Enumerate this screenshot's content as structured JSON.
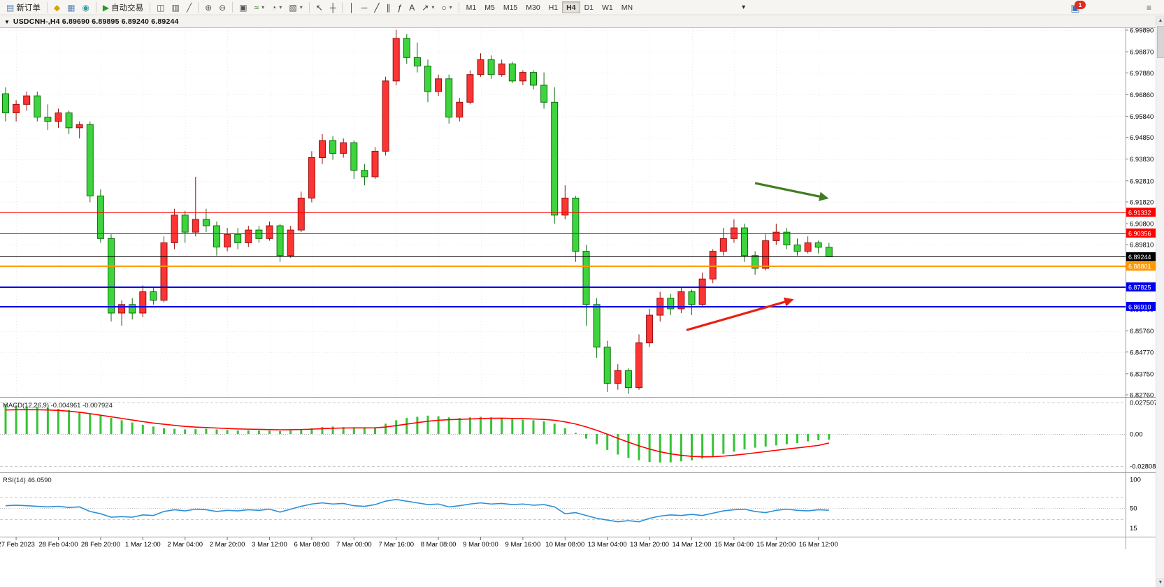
{
  "toolbar": {
    "new_order": {
      "label": "新订单"
    },
    "auto_trading": {
      "label": "自动交易"
    },
    "groups": [
      {
        "items": [
          {
            "name": "new-order",
            "glyph": "▤",
            "color": "#5b86b8",
            "label": "新订单"
          }
        ]
      },
      {
        "items": [
          {
            "name": "market-watch",
            "glyph": "◆",
            "color": "#d8a400"
          },
          {
            "name": "data-window",
            "glyph": "▦",
            "color": "#5b86b8"
          },
          {
            "name": "navigator",
            "glyph": "◉",
            "color": "#2f9e9e"
          }
        ]
      },
      {
        "items": [
          {
            "name": "auto-trading",
            "glyph": "▶",
            "color": "#21a121",
            "label": "自动交易"
          }
        ]
      },
      {
        "items": [
          {
            "name": "bar-chart",
            "glyph": "◫",
            "color": "#555555"
          },
          {
            "name": "candlestick-chart",
            "glyph": "▥",
            "color": "#555555"
          },
          {
            "name": "line-chart",
            "glyph": "╱",
            "color": "#555555"
          }
        ]
      },
      {
        "items": [
          {
            "name": "zoom-in",
            "glyph": "⊕",
            "color": "#555555"
          },
          {
            "name": "zoom-out",
            "glyph": "⊖",
            "color": "#555555"
          }
        ]
      },
      {
        "items": [
          {
            "name": "tile-windows",
            "glyph": "▣",
            "color": "#555555"
          },
          {
            "name": "indicators",
            "glyph": "≈",
            "color": "#2f7d2f",
            "caret": true
          },
          {
            "name": "periods",
            "glyph": "◔",
            "color": "#555555",
            "caret": true
          },
          {
            "name": "templates",
            "glyph": "▧",
            "color": "#555555",
            "caret": true
          }
        ]
      },
      {
        "items": [
          {
            "name": "cursor",
            "glyph": "↖",
            "color": "#333333"
          },
          {
            "name": "crosshair",
            "glyph": "┼",
            "color": "#333333"
          }
        ]
      },
      {
        "items": [
          {
            "name": "vertical-line",
            "glyph": "│",
            "color": "#333333"
          },
          {
            "name": "horizontal-line",
            "glyph": "─",
            "color": "#333333"
          },
          {
            "name": "trendline",
            "glyph": "╱",
            "color": "#333333"
          },
          {
            "name": "equidistant-channel",
            "glyph": "∥",
            "color": "#333333"
          },
          {
            "name": "fibonacci",
            "glyph": "ƒ",
            "color": "#333333"
          },
          {
            "name": "text-label",
            "glyph": "A",
            "color": "#333333"
          },
          {
            "name": "arrows-tool",
            "glyph": "↗",
            "color": "#333333",
            "caret": true
          },
          {
            "name": "shapes",
            "glyph": "○",
            "color": "#333333",
            "caret": true
          }
        ]
      }
    ],
    "timeframes": {
      "items": [
        "M1",
        "M5",
        "M15",
        "M30",
        "H1",
        "H4",
        "D1",
        "W1",
        "MN"
      ],
      "active": "H4"
    },
    "notification": {
      "count": "1"
    }
  },
  "chart_header": {
    "symbol_title": "USDCNH-,H4  6.89690 6.89895 6.89240 6.89244"
  },
  "chart_data": {
    "type": "candlestick",
    "symbol": "USDCNH-",
    "timeframe": "H4",
    "ohlc_legend": {
      "open": "6.89690",
      "high": "6.89895",
      "low": "6.89240",
      "close": "6.89244"
    },
    "up_color": "#fb3434",
    "down_color": "#3ed43e",
    "up_stroke": "#990f0f",
    "down_stroke": "#0b6e0b",
    "price_range": {
      "top": 6.9989,
      "bottom": 6.8276
    },
    "y_ticks": [
      6.9989,
      6.9887,
      6.9788,
      6.9686,
      6.9584,
      6.9485,
      6.9383,
      6.9281,
      6.9182,
      6.908,
      6.8981,
      6.8879,
      6.878,
      6.8678,
      6.8576,
      6.8477,
      6.8375,
      6.8276
    ],
    "x_labels": [
      "27 Feb 2023",
      "28 Feb 04:00",
      "28 Feb 20:00",
      "1 Mar 12:00",
      "2 Mar 04:00",
      "2 Mar 20:00",
      "3 Mar 12:00",
      "6 Mar 08:00",
      "7 Mar 00:00",
      "7 Mar 16:00",
      "8 Mar 08:00",
      "9 Mar 00:00",
      "9 Mar 16:00",
      "10 Mar 08:00",
      "13 Mar 04:00",
      "13 Mar 20:00",
      "14 Mar 12:00",
      "15 Mar 04:00",
      "15 Mar 20:00",
      "16 Mar 12:00"
    ],
    "candles": [
      [
        6.969,
        6.972,
        6.956,
        6.96
      ],
      [
        6.96,
        6.966,
        6.956,
        6.964
      ],
      [
        6.964,
        6.97,
        6.961,
        6.968
      ],
      [
        6.968,
        6.97,
        6.956,
        6.958
      ],
      [
        6.958,
        6.964,
        6.952,
        6.956
      ],
      [
        6.956,
        6.962,
        6.953,
        6.96
      ],
      [
        6.96,
        6.961,
        6.95,
        6.953
      ],
      [
        6.953,
        6.956,
        6.948,
        6.9545
      ],
      [
        6.9545,
        6.956,
        6.918,
        6.921
      ],
      [
        6.921,
        6.924,
        6.899,
        6.901
      ],
      [
        6.901,
        6.903,
        6.862,
        6.866
      ],
      [
        6.866,
        6.872,
        6.86,
        6.87
      ],
      [
        6.87,
        6.873,
        6.863,
        6.866
      ],
      [
        6.866,
        6.879,
        6.864,
        6.876
      ],
      [
        6.876,
        6.878,
        6.87,
        6.872
      ],
      [
        6.872,
        6.902,
        6.871,
        6.899
      ],
      [
        6.899,
        6.915,
        6.896,
        6.912
      ],
      [
        6.912,
        6.914,
        6.899,
        6.904
      ],
      [
        6.904,
        6.93,
        6.902,
        6.91
      ],
      [
        6.91,
        6.915,
        6.904,
        6.907
      ],
      [
        6.907,
        6.909,
        6.893,
        6.897
      ],
      [
        6.897,
        6.906,
        6.895,
        6.903
      ],
      [
        6.903,
        6.906,
        6.896,
        6.899
      ],
      [
        6.899,
        6.907,
        6.897,
        6.905
      ],
      [
        6.905,
        6.907,
        6.899,
        6.901
      ],
      [
        6.901,
        6.909,
        6.9,
        6.907
      ],
      [
        6.907,
        6.908,
        6.89,
        6.893
      ],
      [
        6.893,
        6.907,
        6.892,
        6.905
      ],
      [
        6.905,
        6.923,
        6.904,
        6.92
      ],
      [
        6.92,
        6.942,
        6.918,
        6.939
      ],
      [
        6.939,
        6.95,
        6.936,
        6.947
      ],
      [
        6.947,
        6.949,
        6.938,
        6.941
      ],
      [
        6.941,
        6.948,
        6.939,
        6.946
      ],
      [
        6.946,
        6.947,
        6.929,
        6.933
      ],
      [
        6.933,
        6.936,
        6.926,
        6.93
      ],
      [
        6.93,
        6.944,
        6.929,
        6.942
      ],
      [
        6.942,
        6.977,
        6.94,
        6.975
      ],
      [
        6.975,
        6.999,
        6.973,
        6.995
      ],
      [
        6.995,
        6.997,
        6.983,
        6.986
      ],
      [
        6.986,
        6.993,
        6.979,
        6.982
      ],
      [
        6.982,
        6.985,
        6.965,
        6.97
      ],
      [
        6.97,
        6.978,
        6.968,
        6.976
      ],
      [
        6.976,
        6.978,
        6.955,
        6.958
      ],
      [
        6.958,
        6.967,
        6.956,
        6.965
      ],
      [
        6.965,
        6.98,
        6.964,
        6.978
      ],
      [
        6.978,
        6.988,
        6.977,
        6.985
      ],
      [
        6.985,
        6.987,
        6.976,
        6.978
      ],
      [
        6.978,
        6.985,
        6.977,
        6.983
      ],
      [
        6.983,
        6.984,
        6.974,
        6.975
      ],
      [
        6.975,
        6.98,
        6.973,
        6.979
      ],
      [
        6.979,
        6.98,
        6.971,
        6.973
      ],
      [
        6.973,
        6.979,
        6.962,
        6.965
      ],
      [
        6.965,
        6.972,
        6.908,
        6.912
      ],
      [
        6.912,
        6.926,
        6.91,
        6.92
      ],
      [
        6.92,
        6.921,
        6.89,
        6.895
      ],
      [
        6.895,
        6.898,
        6.86,
        6.87
      ],
      [
        6.87,
        6.873,
        6.845,
        6.85
      ],
      [
        6.85,
        6.853,
        6.829,
        6.833
      ],
      [
        6.833,
        6.842,
        6.83,
        6.839
      ],
      [
        6.839,
        6.84,
        6.828,
        6.831
      ],
      [
        6.831,
        6.856,
        6.83,
        6.852
      ],
      [
        6.852,
        6.868,
        6.85,
        6.865
      ],
      [
        6.865,
        6.876,
        6.862,
        6.873
      ],
      [
        6.873,
        6.875,
        6.865,
        6.868
      ],
      [
        6.868,
        6.878,
        6.866,
        6.876
      ],
      [
        6.876,
        6.877,
        6.865,
        6.87
      ],
      [
        6.87,
        6.885,
        6.869,
        6.882
      ],
      [
        6.882,
        6.896,
        6.88,
        6.895
      ],
      [
        6.895,
        6.906,
        6.893,
        6.901
      ],
      [
        6.901,
        6.91,
        6.899,
        6.906
      ],
      [
        6.906,
        6.908,
        6.89,
        6.893
      ],
      [
        6.893,
        6.895,
        6.884,
        6.887
      ],
      [
        6.887,
        6.903,
        6.886,
        6.9
      ],
      [
        6.9,
        6.908,
        6.898,
        6.904
      ],
      [
        6.904,
        6.906,
        6.896,
        6.898
      ],
      [
        6.898,
        6.901,
        6.893,
        6.895
      ],
      [
        6.895,
        6.902,
        6.894,
        6.899
      ],
      [
        6.899,
        6.9,
        6.894,
        6.8969
      ],
      [
        6.8969,
        6.89895,
        6.8924,
        6.89244
      ]
    ],
    "hlines": [
      {
        "price": 6.91332,
        "label": "6.91332",
        "color": "#ff0000",
        "width": 1
      },
      {
        "price": 6.90356,
        "label": "6.90356",
        "color": "#ff0000",
        "width": 1
      },
      {
        "price": 6.89244,
        "label": "6.89244",
        "color": "#000000",
        "width": 1,
        "is_price_line": true
      },
      {
        "price": 6.88801,
        "label": "6.88801",
        "color": "#ff9900",
        "width": 2
      },
      {
        "price": 6.87825,
        "label": "6.87825",
        "color": "#0000ee",
        "width": 2
      },
      {
        "price": 6.8691,
        "label": "6.86910",
        "color": "#0000ee",
        "width": 2
      }
    ],
    "arrows": [
      {
        "name": "green-arrow",
        "color": "#3e7d22",
        "from_index": 71,
        "from_price": 6.927,
        "to_index": 77.8,
        "to_price": 6.92
      },
      {
        "name": "red-arrow",
        "color": "#e82010",
        "from_index": 64.5,
        "from_price": 6.858,
        "to_index": 74.5,
        "to_price": 6.8722
      }
    ],
    "indicators": {
      "macd": {
        "label": "MACD(12,26,9)",
        "value_main": "-0.004961",
        "value_signal": "-0.007924",
        "axis_ticks": [
          "0.027507",
          "0.00",
          "-0.028083"
        ],
        "axis_values": [
          0.027507,
          0,
          -0.028083
        ],
        "histogram_color": "#35c435",
        "signal_color": "#ff0000",
        "histogram": [
          0.026,
          0.025,
          0.024,
          0.0235,
          0.023,
          0.022,
          0.021,
          0.0195,
          0.018,
          0.016,
          0.014,
          0.012,
          0.01,
          0.008,
          0.0065,
          0.005,
          0.0045,
          0.004,
          0.0042,
          0.0045,
          0.004,
          0.0035,
          0.003,
          0.0032,
          0.003,
          0.0028,
          0.0025,
          0.003,
          0.004,
          0.005,
          0.006,
          0.0065,
          0.006,
          0.0055,
          0.005,
          0.0055,
          0.009,
          0.012,
          0.014,
          0.015,
          0.016,
          0.0155,
          0.0145,
          0.014,
          0.0145,
          0.015,
          0.0145,
          0.014,
          0.013,
          0.0125,
          0.012,
          0.011,
          0.009,
          0.005,
          0.001,
          -0.004,
          -0.009,
          -0.014,
          -0.018,
          -0.021,
          -0.023,
          -0.0245,
          -0.025,
          -0.0248,
          -0.024,
          -0.023,
          -0.0215,
          -0.0195,
          -0.0175,
          -0.0155,
          -0.0135,
          -0.012,
          -0.011,
          -0.01,
          -0.009,
          -0.008,
          -0.0065,
          -0.0055,
          -0.005
        ],
        "signal": [
          0.021,
          0.0212,
          0.0213,
          0.0212,
          0.021,
          0.0206,
          0.0199,
          0.019,
          0.0178,
          0.0164,
          0.015,
          0.0136,
          0.0122,
          0.0108,
          0.0095,
          0.0085,
          0.0075,
          0.0066,
          0.006,
          0.0056,
          0.0052,
          0.0048,
          0.0044,
          0.0042,
          0.004,
          0.0038,
          0.0036,
          0.0037,
          0.0039,
          0.0042,
          0.0046,
          0.005,
          0.0052,
          0.0053,
          0.0053,
          0.0054,
          0.0061,
          0.0073,
          0.0086,
          0.0099,
          0.0111,
          0.012,
          0.0125,
          0.0128,
          0.0131,
          0.0135,
          0.0137,
          0.0138,
          0.0136,
          0.0134,
          0.0131,
          0.0127,
          0.012,
          0.0106,
          0.0087,
          0.0062,
          0.0032,
          -0.0002,
          -0.0038,
          -0.0072,
          -0.0104,
          -0.0132,
          -0.0156,
          -0.0174,
          -0.0187,
          -0.0196,
          -0.02,
          -0.0199,
          -0.0194,
          -0.0186,
          -0.0176,
          -0.0165,
          -0.0154,
          -0.0143,
          -0.0132,
          -0.0122,
          -0.0111,
          -0.01,
          -0.0079
        ]
      },
      "rsi": {
        "label": "RSI(14)",
        "value": "46.0590",
        "axis_ticks": [
          "100",
          "50",
          "15"
        ],
        "axis_values": [
          100,
          50,
          15
        ],
        "line_color": "#2a8fd8",
        "levels_dashed": [
          70,
          30
        ],
        "level_dotted": 50,
        "values": [
          54,
          55,
          54,
          53,
          52,
          53,
          51,
          52,
          44,
          40,
          34,
          35,
          34,
          38,
          37,
          44,
          47,
          45,
          48,
          47,
          44,
          46,
          45,
          47,
          46,
          48,
          43,
          48,
          53,
          57,
          59,
          57,
          58,
          54,
          53,
          56,
          62,
          65,
          62,
          59,
          56,
          57,
          52,
          54,
          57,
          59,
          57,
          58,
          56,
          57,
          55,
          56,
          52,
          40,
          42,
          37,
          32,
          29,
          26,
          28,
          26,
          32,
          36,
          38,
          37,
          39,
          37,
          41,
          45,
          47,
          48,
          44,
          42,
          46,
          48,
          46,
          45,
          47,
          46.06
        ]
      }
    }
  }
}
